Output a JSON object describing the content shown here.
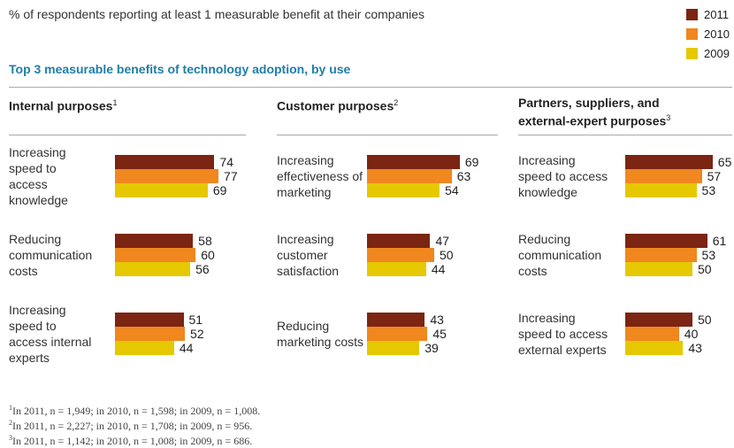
{
  "header": {
    "subtitle": "% of respondents reporting at least 1 measurable benefit at their companies",
    "title": "Top 3 measurable benefits of technology adoption, by use"
  },
  "chart_data": [
    {
      "type": "bar",
      "title": "Internal purposes",
      "title_note": "1",
      "categories": [
        "Increasing speed to access knowledge",
        "Reducing communication costs",
        "Increasing speed to access internal experts"
      ],
      "series": [
        {
          "name": "2011",
          "color": "#7b2512",
          "values": [
            74,
            58,
            51
          ]
        },
        {
          "name": "2010",
          "color": "#f0871f",
          "values": [
            77,
            60,
            52
          ]
        },
        {
          "name": "2009",
          "color": "#e6c800",
          "values": [
            69,
            56,
            44
          ]
        }
      ]
    },
    {
      "type": "bar",
      "title": "Customer purposes",
      "title_note": "2",
      "categories": [
        "Increasing effectiveness of marketing",
        "Increasing customer satisfaction",
        "Reducing marketing costs"
      ],
      "series": [
        {
          "name": "2011",
          "color": "#7b2512",
          "values": [
            69,
            47,
            43
          ]
        },
        {
          "name": "2010",
          "color": "#f0871f",
          "values": [
            63,
            50,
            45
          ]
        },
        {
          "name": "2009",
          "color": "#e6c800",
          "values": [
            54,
            44,
            39
          ]
        }
      ]
    },
    {
      "type": "bar",
      "title": "Partners, suppliers, and external-expert purposes",
      "title_note": "3",
      "categories": [
        "Increasing speed to access knowledge",
        "Reducing communication costs",
        "Increasing speed to access external experts"
      ],
      "series": [
        {
          "name": "2011",
          "color": "#7b2512",
          "values": [
            65,
            61,
            50
          ]
        },
        {
          "name": "2010",
          "color": "#f0871f",
          "values": [
            57,
            53,
            40
          ]
        },
        {
          "name": "2009",
          "color": "#e6c800",
          "values": [
            53,
            50,
            43
          ]
        }
      ]
    }
  ],
  "footnotes": [
    {
      "mark": "1",
      "text": "In 2011, n = 1,949; in 2010, n = 1,598; in 2009, n = 1,008."
    },
    {
      "mark": "2",
      "text": "In 2011, n = 2,227; in 2010, n = 1,708; in 2009, n = 956."
    },
    {
      "mark": "3",
      "text": "In 2011, n = 1,142; in 2010, n = 1,008; in 2009, n = 686."
    }
  ]
}
